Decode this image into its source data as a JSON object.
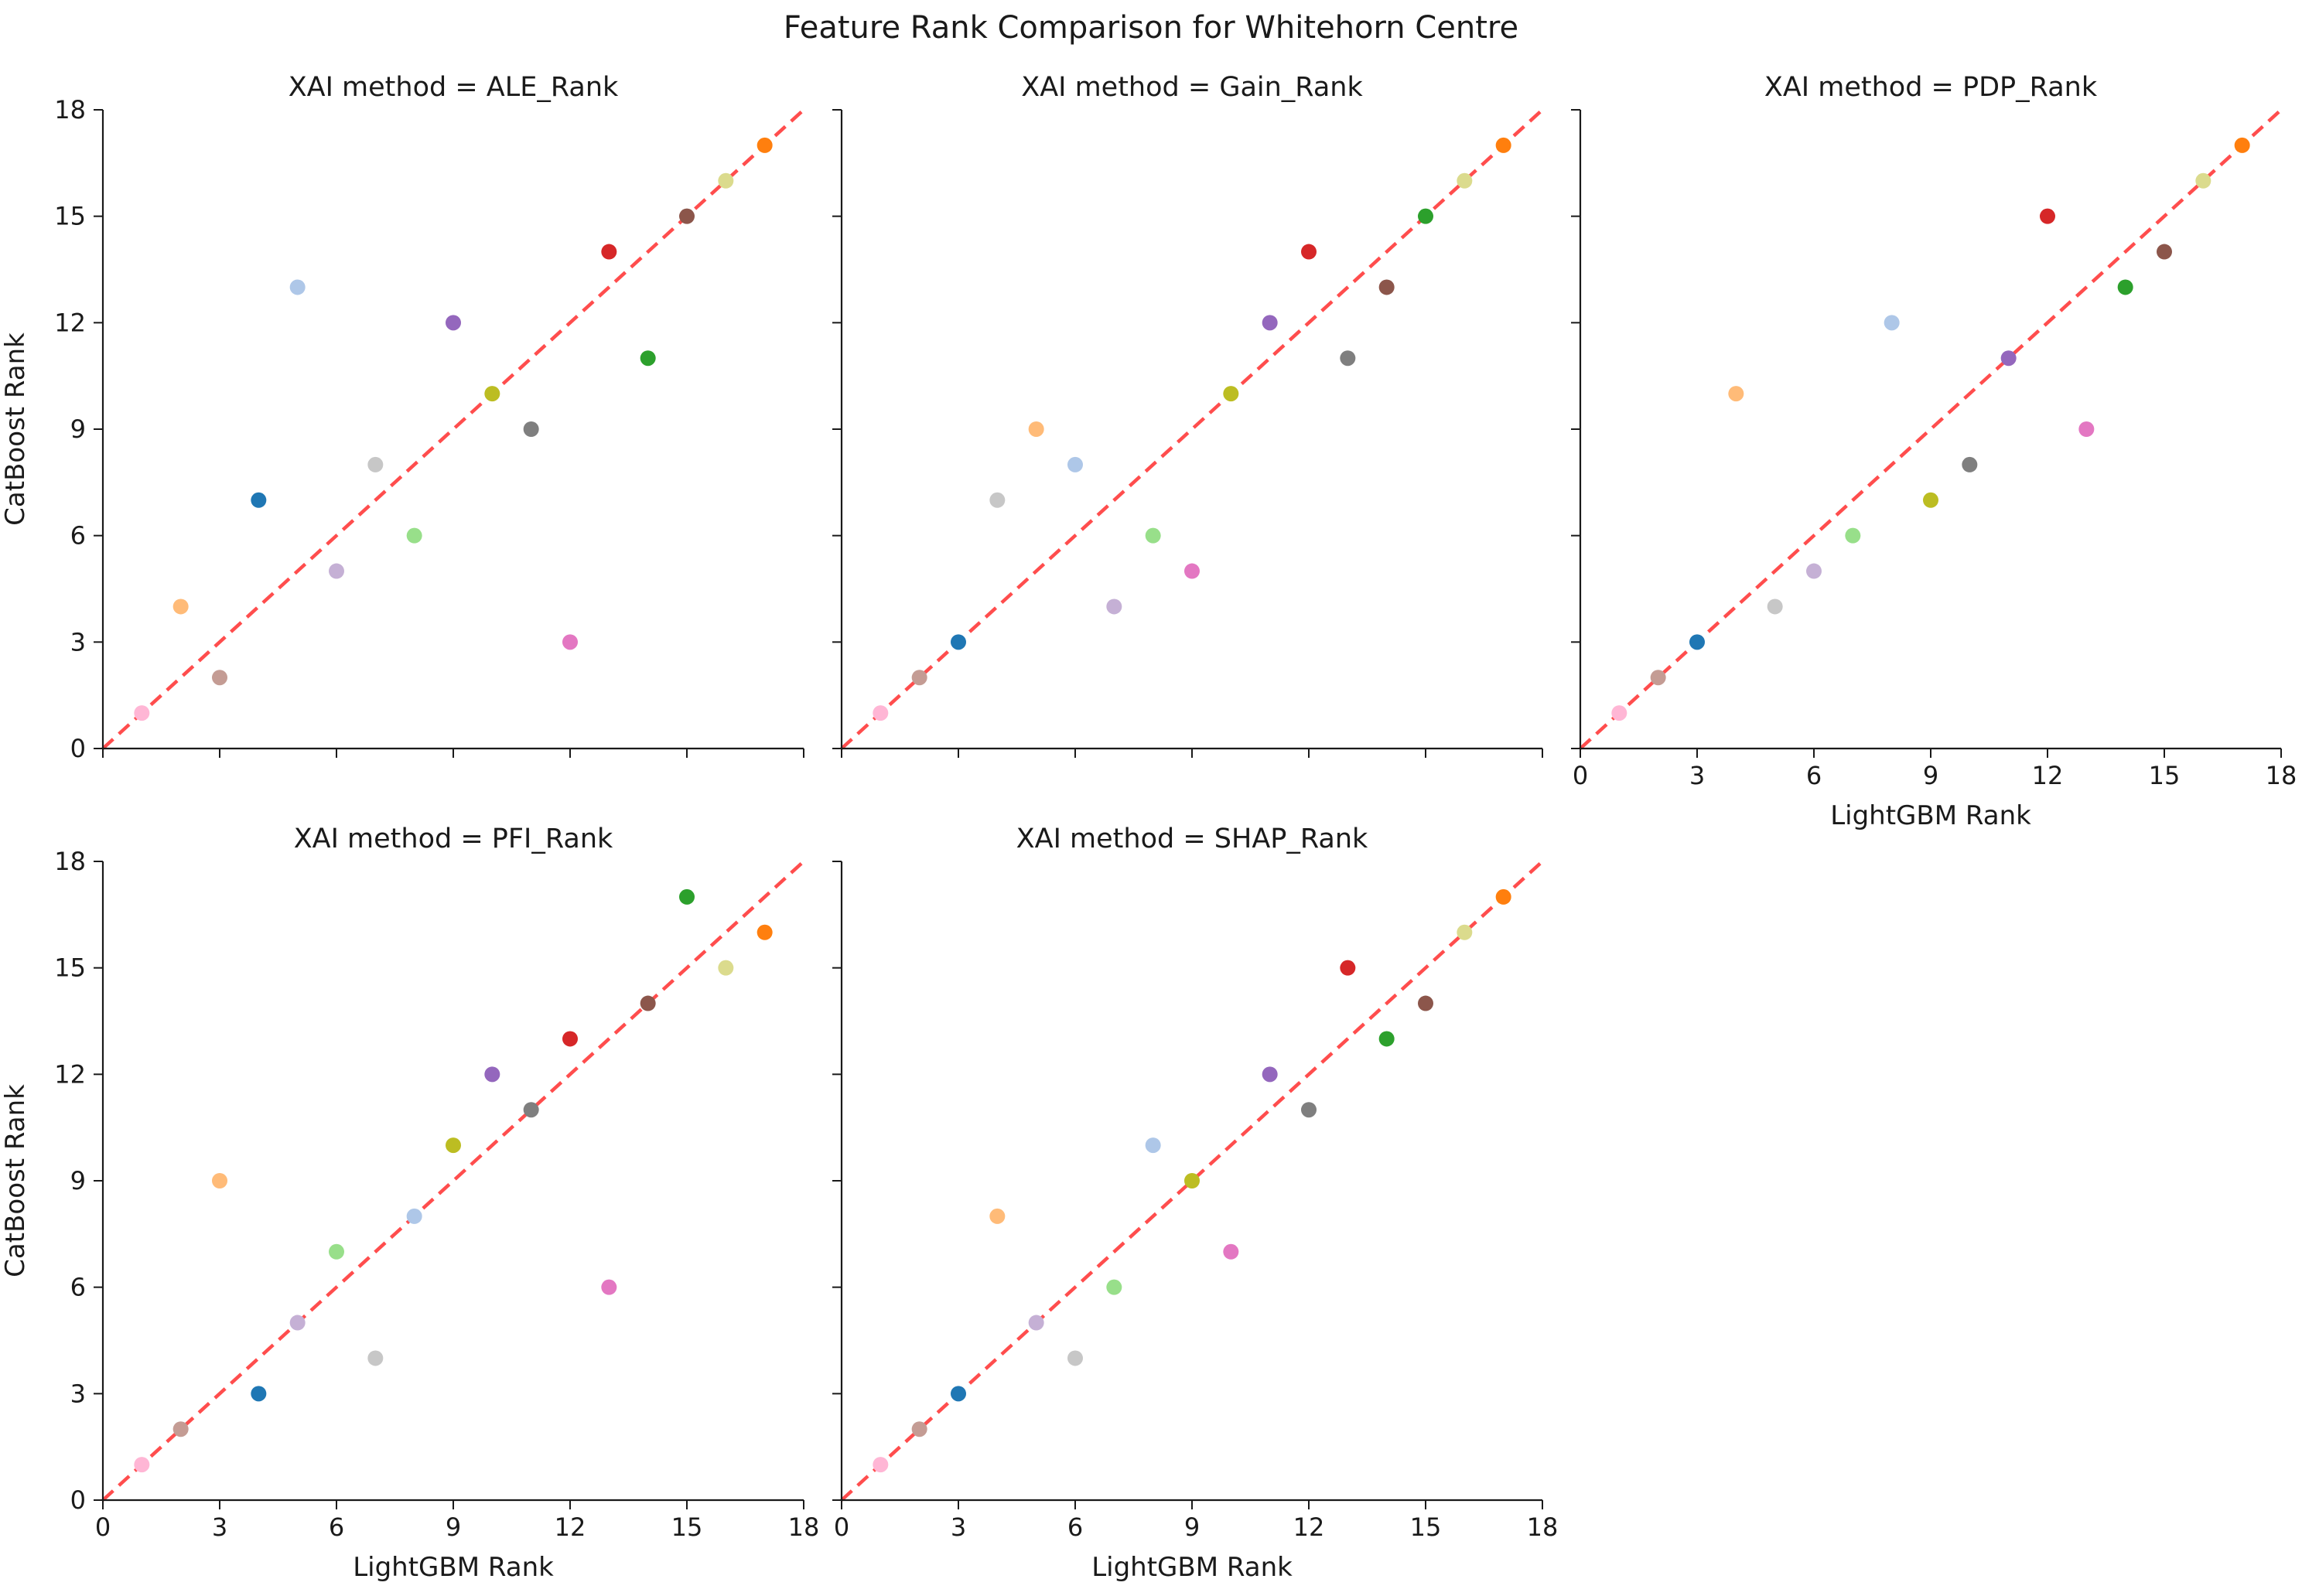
{
  "figure": {
    "title": "Feature Rank Comparison for Whitehorn Centre"
  },
  "colors": {
    "diagonal": "#ff4d4d",
    "palette": [
      "#ffb6d5",
      "#c49c94",
      "#1f77b4",
      "#ffbb78",
      "#aec7e8",
      "#c5b0d5",
      "#c7c7c7",
      "#98df8a",
      "#9467bd",
      "#bcbd22",
      "#7f7f7f",
      "#e377c2",
      "#d62728",
      "#2ca02c",
      "#8c564b",
      "#dbdb8d",
      "#ff7f0e"
    ]
  },
  "chart_data": [
    {
      "type": "scatter",
      "title": "XAI method = ALE_Rank",
      "xlabel": "",
      "ylabel": "CatBoost Rank",
      "xlim": [
        0,
        18
      ],
      "ylim": [
        0,
        18
      ],
      "xticks": [
        0,
        3,
        6,
        9,
        12,
        15,
        18
      ],
      "yticks": [
        0,
        3,
        6,
        9,
        12,
        15,
        18
      ],
      "show_xtick_labels": false,
      "show_ytick_labels": true,
      "diagonal": true,
      "points": [
        {
          "x": 1,
          "y": 1,
          "c": 0
        },
        {
          "x": 3,
          "y": 2,
          "c": 1
        },
        {
          "x": 4,
          "y": 7,
          "c": 2
        },
        {
          "x": 2,
          "y": 4,
          "c": 3
        },
        {
          "x": 5,
          "y": 13,
          "c": 4
        },
        {
          "x": 6,
          "y": 5,
          "c": 5
        },
        {
          "x": 7,
          "y": 8,
          "c": 6
        },
        {
          "x": 8,
          "y": 6,
          "c": 7
        },
        {
          "x": 9,
          "y": 12,
          "c": 8
        },
        {
          "x": 10,
          "y": 10,
          "c": 9
        },
        {
          "x": 11,
          "y": 9,
          "c": 10
        },
        {
          "x": 12,
          "y": 3,
          "c": 11
        },
        {
          "x": 13,
          "y": 14,
          "c": 12
        },
        {
          "x": 14,
          "y": 11,
          "c": 13
        },
        {
          "x": 15,
          "y": 15,
          "c": 14
        },
        {
          "x": 16,
          "y": 16,
          "c": 15
        },
        {
          "x": 17,
          "y": 17,
          "c": 16
        }
      ]
    },
    {
      "type": "scatter",
      "title": "XAI method = Gain_Rank",
      "xlabel": "",
      "ylabel": "",
      "xlim": [
        0,
        18
      ],
      "ylim": [
        0,
        18
      ],
      "xticks": [
        0,
        3,
        6,
        9,
        12,
        15,
        18
      ],
      "yticks": [
        0,
        3,
        6,
        9,
        12,
        15,
        18
      ],
      "show_xtick_labels": false,
      "show_ytick_labels": false,
      "diagonal": true,
      "points": [
        {
          "x": 1,
          "y": 1,
          "c": 0
        },
        {
          "x": 2,
          "y": 2,
          "c": 1
        },
        {
          "x": 3,
          "y": 3,
          "c": 2
        },
        {
          "x": 5,
          "y": 9,
          "c": 3
        },
        {
          "x": 6,
          "y": 8,
          "c": 4
        },
        {
          "x": 7,
          "y": 4,
          "c": 5
        },
        {
          "x": 4,
          "y": 7,
          "c": 6
        },
        {
          "x": 8,
          "y": 6,
          "c": 7
        },
        {
          "x": 11,
          "y": 12,
          "c": 8
        },
        {
          "x": 10,
          "y": 10,
          "c": 9
        },
        {
          "x": 13,
          "y": 11,
          "c": 10
        },
        {
          "x": 9,
          "y": 5,
          "c": 11
        },
        {
          "x": 12,
          "y": 14,
          "c": 12
        },
        {
          "x": 15,
          "y": 15,
          "c": 13
        },
        {
          "x": 14,
          "y": 13,
          "c": 14
        },
        {
          "x": 16,
          "y": 16,
          "c": 15
        },
        {
          "x": 17,
          "y": 17,
          "c": 16
        }
      ]
    },
    {
      "type": "scatter",
      "title": "XAI method = PDP_Rank",
      "xlabel": "LightGBM Rank",
      "ylabel": "",
      "xlim": [
        0,
        18
      ],
      "ylim": [
        0,
        18
      ],
      "xticks": [
        0,
        3,
        6,
        9,
        12,
        15,
        18
      ],
      "yticks": [
        0,
        3,
        6,
        9,
        12,
        15,
        18
      ],
      "show_xtick_labels": true,
      "show_ytick_labels": false,
      "diagonal": true,
      "points": [
        {
          "x": 1,
          "y": 1,
          "c": 0
        },
        {
          "x": 2,
          "y": 2,
          "c": 1
        },
        {
          "x": 3,
          "y": 3,
          "c": 2
        },
        {
          "x": 4,
          "y": 10,
          "c": 3
        },
        {
          "x": 8,
          "y": 12,
          "c": 4
        },
        {
          "x": 6,
          "y": 5,
          "c": 5
        },
        {
          "x": 5,
          "y": 4,
          "c": 6
        },
        {
          "x": 7,
          "y": 6,
          "c": 7
        },
        {
          "x": 11,
          "y": 11,
          "c": 8
        },
        {
          "x": 9,
          "y": 7,
          "c": 9
        },
        {
          "x": 10,
          "y": 8,
          "c": 10
        },
        {
          "x": 13,
          "y": 9,
          "c": 11
        },
        {
          "x": 12,
          "y": 15,
          "c": 12
        },
        {
          "x": 14,
          "y": 13,
          "c": 13
        },
        {
          "x": 15,
          "y": 14,
          "c": 14
        },
        {
          "x": 16,
          "y": 16,
          "c": 15
        },
        {
          "x": 17,
          "y": 17,
          "c": 16
        }
      ]
    },
    {
      "type": "scatter",
      "title": "XAI method = PFI_Rank",
      "xlabel": "LightGBM Rank",
      "ylabel": "CatBoost Rank",
      "xlim": [
        0,
        18
      ],
      "ylim": [
        0,
        18
      ],
      "xticks": [
        0,
        3,
        6,
        9,
        12,
        15,
        18
      ],
      "yticks": [
        0,
        3,
        6,
        9,
        12,
        15,
        18
      ],
      "show_xtick_labels": true,
      "show_ytick_labels": true,
      "diagonal": true,
      "points": [
        {
          "x": 1,
          "y": 1,
          "c": 0
        },
        {
          "x": 2,
          "y": 2,
          "c": 1
        },
        {
          "x": 4,
          "y": 3,
          "c": 2
        },
        {
          "x": 3,
          "y": 9,
          "c": 3
        },
        {
          "x": 8,
          "y": 8,
          "c": 4
        },
        {
          "x": 5,
          "y": 5,
          "c": 5
        },
        {
          "x": 7,
          "y": 4,
          "c": 6
        },
        {
          "x": 6,
          "y": 7,
          "c": 7
        },
        {
          "x": 10,
          "y": 12,
          "c": 8
        },
        {
          "x": 9,
          "y": 10,
          "c": 9
        },
        {
          "x": 11,
          "y": 11,
          "c": 10
        },
        {
          "x": 13,
          "y": 6,
          "c": 11
        },
        {
          "x": 12,
          "y": 13,
          "c": 12
        },
        {
          "x": 15,
          "y": 17,
          "c": 13
        },
        {
          "x": 14,
          "y": 14,
          "c": 14
        },
        {
          "x": 16,
          "y": 15,
          "c": 15
        },
        {
          "x": 17,
          "y": 16,
          "c": 16
        }
      ]
    },
    {
      "type": "scatter",
      "title": "XAI method = SHAP_Rank",
      "xlabel": "LightGBM Rank",
      "ylabel": "",
      "xlim": [
        0,
        18
      ],
      "ylim": [
        0,
        18
      ],
      "xticks": [
        0,
        3,
        6,
        9,
        12,
        15,
        18
      ],
      "yticks": [
        0,
        3,
        6,
        9,
        12,
        15,
        18
      ],
      "show_xtick_labels": true,
      "show_ytick_labels": false,
      "diagonal": true,
      "points": [
        {
          "x": 1,
          "y": 1,
          "c": 0
        },
        {
          "x": 2,
          "y": 2,
          "c": 1
        },
        {
          "x": 3,
          "y": 3,
          "c": 2
        },
        {
          "x": 4,
          "y": 8,
          "c": 3
        },
        {
          "x": 8,
          "y": 10,
          "c": 4
        },
        {
          "x": 5,
          "y": 5,
          "c": 5
        },
        {
          "x": 6,
          "y": 4,
          "c": 6
        },
        {
          "x": 7,
          "y": 6,
          "c": 7
        },
        {
          "x": 11,
          "y": 12,
          "c": 8
        },
        {
          "x": 9,
          "y": 9,
          "c": 9
        },
        {
          "x": 12,
          "y": 11,
          "c": 10
        },
        {
          "x": 10,
          "y": 7,
          "c": 11
        },
        {
          "x": 13,
          "y": 15,
          "c": 12
        },
        {
          "x": 14,
          "y": 13,
          "c": 13
        },
        {
          "x": 15,
          "y": 14,
          "c": 14
        },
        {
          "x": 16,
          "y": 16,
          "c": 15
        },
        {
          "x": 17,
          "y": 17,
          "c": 16
        }
      ]
    }
  ]
}
